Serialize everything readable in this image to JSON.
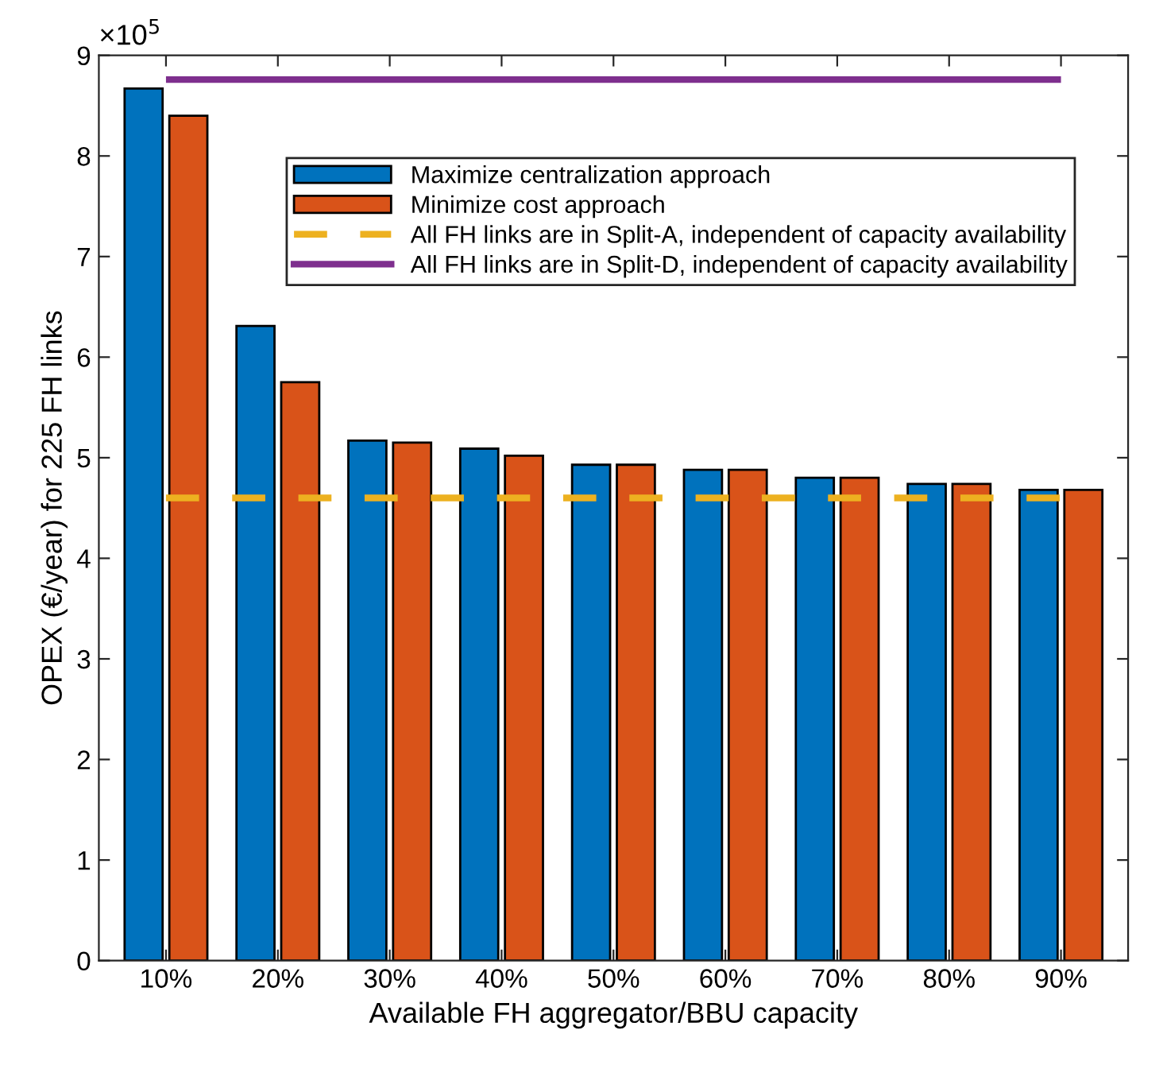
{
  "chart_data": {
    "type": "bar",
    "xlabel": "Available FH aggregator/BBU capacity",
    "ylabel": "OPEX (€/year) for 225 FH links",
    "categories": [
      "10%",
      "20%",
      "30%",
      "40%",
      "50%",
      "60%",
      "70%",
      "80%",
      "90%"
    ],
    "series": [
      {
        "name": "Maximize centralization approach",
        "color": "#0072bd",
        "values": [
          8.67,
          6.31,
          5.17,
          5.09,
          4.93,
          4.88,
          4.8,
          4.74,
          4.68
        ]
      },
      {
        "name": "Minimize cost approach",
        "color": "#d95319",
        "values": [
          8.4,
          5.75,
          5.15,
          5.02,
          4.93,
          4.88,
          4.8,
          4.74,
          4.68
        ]
      }
    ],
    "ref_lines": [
      {
        "axis": "y",
        "value": 4.6,
        "label": "All FH links are in Split-A, independent of capacity availability",
        "color": "#edb120",
        "line_style": "dashed"
      },
      {
        "axis": "y",
        "value": 8.76,
        "label": "All FH links are in Split-D, independent of capacity availability",
        "color": "#7e2f8e",
        "line_style": "solid"
      }
    ],
    "annotations": [
      "×10$^{5}$"
    ],
    "ylim": [
      0,
      9
    ],
    "yticks": [
      0,
      1,
      2,
      3,
      4,
      5,
      6,
      7,
      8,
      9
    ],
    "grid": false,
    "legend": "top right"
  }
}
